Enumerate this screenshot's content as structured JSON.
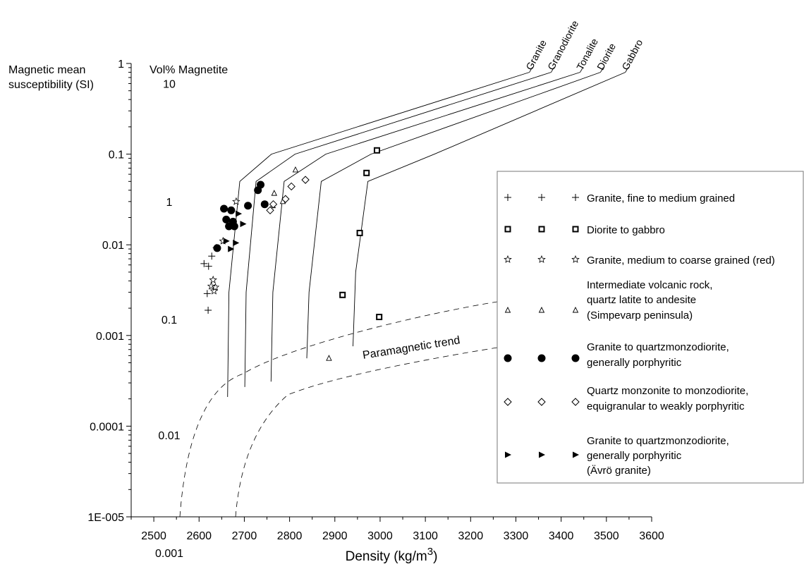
{
  "chart_data": {
    "type": "scatter",
    "xlabel": "Density (kg/m3)",
    "xlabel_main": "Density (kg/m",
    "xlabel_sup": "3",
    "xlabel_end": ")",
    "ylabel_line1": "Magnetic mean",
    "ylabel_line2": "susceptibility (SI)",
    "y2label": "Vol% Magnetite",
    "x_ticks": [
      2500,
      2600,
      2700,
      2800,
      2900,
      3000,
      3100,
      3200,
      3300,
      3400,
      3500,
      3600
    ],
    "xlim": [
      2450,
      3600
    ],
    "y_scale": "log",
    "ylim": [
      1e-05,
      1
    ],
    "y_ticks": [
      {
        "value": 1,
        "label": "1"
      },
      {
        "value": 0.1,
        "label": "0.1"
      },
      {
        "value": 0.01,
        "label": "0.01"
      },
      {
        "value": 0.001,
        "label": "0.001"
      },
      {
        "value": 0.0001,
        "label": "0.0001"
      },
      {
        "value": 1e-05,
        "label": "1E-005"
      }
    ],
    "vol_ticks": [
      {
        "value": 0.6,
        "label": "10"
      },
      {
        "value": 0.03,
        "label": "1"
      },
      {
        "value": 0.0015,
        "label": "0.1"
      },
      {
        "value": 8e-05,
        "label": "0.01"
      },
      {
        "value": 4e-06,
        "label": "0.001"
      }
    ],
    "rock_lines": [
      {
        "name": "Granite",
        "points": [
          [
            2663,
            0.00021
          ],
          [
            2666,
            0.003
          ],
          [
            2690,
            0.05
          ],
          [
            2760,
            0.1
          ],
          [
            3330,
            0.8
          ]
        ]
      },
      {
        "name": "Granodiorite",
        "points": [
          [
            2701,
            0.00027
          ],
          [
            2704,
            0.003
          ],
          [
            2726,
            0.05
          ],
          [
            2812,
            0.1
          ],
          [
            3378,
            0.8
          ]
        ]
      },
      {
        "name": "Tonalite",
        "points": [
          [
            2759,
            0.00031
          ],
          [
            2763,
            0.003
          ],
          [
            2788,
            0.05
          ],
          [
            2880,
            0.1
          ],
          [
            3442,
            0.8
          ]
        ]
      },
      {
        "name": "Diorite",
        "points": [
          [
            2838,
            0.00056
          ],
          [
            2843,
            0.003
          ],
          [
            2870,
            0.05
          ],
          [
            2980,
            0.1
          ],
          [
            3487,
            0.8
          ]
        ]
      },
      {
        "name": "Gabbro",
        "points": [
          [
            2940,
            0.00076
          ],
          [
            2946,
            0.005
          ],
          [
            2973,
            0.05
          ],
          [
            3120,
            0.1
          ],
          [
            3542,
            0.8
          ]
        ]
      }
    ],
    "paramagnetic_label": "Paramagnetic trend",
    "series": [
      {
        "name": "Granite, fine to medium grained",
        "marker": "plus",
        "points": [
          [
            2611,
            0.0062
          ],
          [
            2618,
            0.0029
          ],
          [
            2620,
            0.0019
          ],
          [
            2621,
            0.0058
          ],
          [
            2628,
            0.0075
          ],
          [
            2638,
            0.0093
          ]
        ]
      },
      {
        "name": "Diorite to gabbro",
        "marker": "square",
        "points": [
          [
            2917,
            0.0028
          ],
          [
            2955,
            0.0135
          ],
          [
            2970,
            0.062
          ],
          [
            2993,
            0.11
          ],
          [
            2998,
            0.0016
          ]
        ]
      },
      {
        "name": "Granite, medium to coarse grained (red)",
        "marker": "star",
        "points": [
          [
            2627,
            0.0035
          ],
          [
            2631,
            0.0041
          ],
          [
            2633,
            0.0031
          ],
          [
            2636,
            0.0034
          ],
          [
            2653,
            0.011
          ],
          [
            2682,
            0.03
          ]
        ]
      },
      {
        "name": "Intermediate volcanic rock, quartz latite to andesite (Simpevarp peninsula)",
        "marker": "triangle",
        "points": [
          [
            2887,
            0.00056
          ],
          [
            2763,
            0.027
          ],
          [
            2766,
            0.037
          ],
          [
            2785,
            0.03
          ],
          [
            2813,
            0.067
          ]
        ]
      },
      {
        "name": "Granite to quartzmonzodiorite, generally porphyritic",
        "marker": "circle",
        "points": [
          [
            2640,
            0.0092
          ],
          [
            2655,
            0.025
          ],
          [
            2660,
            0.019
          ],
          [
            2666,
            0.016
          ],
          [
            2671,
            0.024
          ],
          [
            2675,
            0.018
          ],
          [
            2678,
            0.016
          ],
          [
            2708,
            0.027
          ],
          [
            2730,
            0.04
          ],
          [
            2736,
            0.046
          ],
          [
            2745,
            0.028
          ]
        ]
      },
      {
        "name": "Quartz monzonite to monzodiorite, equigranular to weakly porphyritic",
        "marker": "diamond",
        "points": [
          [
            2757,
            0.024
          ],
          [
            2764,
            0.028
          ],
          [
            2791,
            0.032
          ],
          [
            2804,
            0.044
          ],
          [
            2835,
            0.052
          ]
        ]
      },
      {
        "name": "Granite to quartzmonzodiorite, generally porphyritic (Ävrö granite)",
        "marker": "rtriangle",
        "points": [
          [
            2660,
            0.011
          ],
          [
            2670,
            0.009
          ],
          [
            2681,
            0.0105
          ],
          [
            2687,
            0.022
          ],
          [
            2697,
            0.017
          ]
        ]
      }
    ],
    "legend_position": "right",
    "legend": [
      {
        "marker": "plus",
        "lines": [
          "Granite, fine to medium grained"
        ]
      },
      {
        "marker": "square",
        "lines": [
          "Diorite to gabbro"
        ]
      },
      {
        "marker": "star",
        "lines": [
          "Granite, medium to coarse grained (red)"
        ]
      },
      {
        "marker": "triangle",
        "lines": [
          "Intermediate volcanic rock,",
          "quartz latite to andesite",
          "(Simpevarp peninsula)"
        ]
      },
      {
        "marker": "circle",
        "lines": [
          "Granite to quartzmonzodiorite,",
          "generally porphyritic"
        ]
      },
      {
        "marker": "diamond",
        "lines": [
          "Quartz monzonite to monzodiorite,",
          "equigranular to weakly porphyritic"
        ]
      },
      {
        "marker": "rtriangle",
        "lines": [
          "Granite to quartzmonzodiorite,",
          "generally porphyritic",
          "(Ävrö granite)"
        ]
      }
    ]
  }
}
